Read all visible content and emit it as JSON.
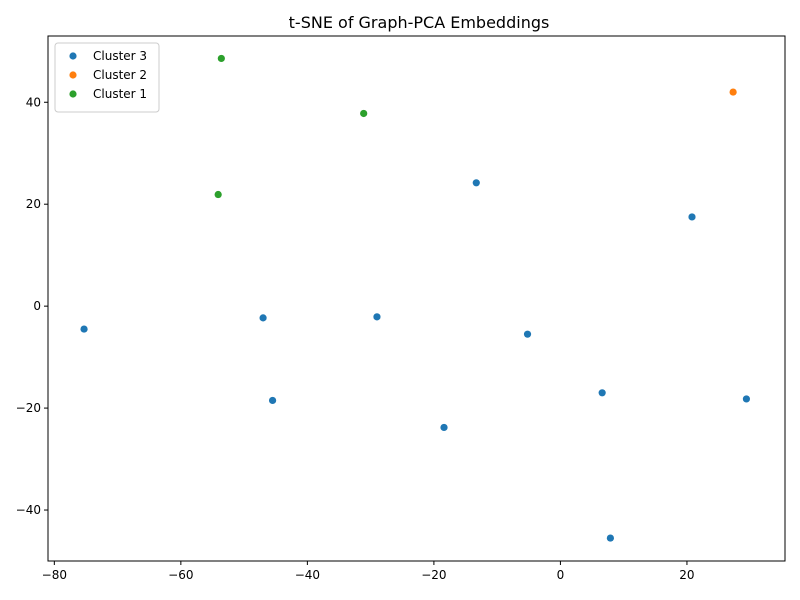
{
  "chart_data": {
    "type": "scatter",
    "title": "t-SNE of Graph-PCA Embeddings",
    "xlabel": "",
    "ylabel": "",
    "xlim": [
      -81,
      35.5
    ],
    "ylim": [
      -50,
      53
    ],
    "x_ticks": [
      -80,
      -60,
      -40,
      -20,
      0,
      20
    ],
    "y_ticks": [
      -40,
      -20,
      0,
      20,
      40
    ],
    "x_tick_labels": [
      "−80",
      "−60",
      "−40",
      "−20",
      "0",
      "20"
    ],
    "y_tick_labels": [
      "−40",
      "−20",
      "0",
      "20",
      "40"
    ],
    "grid": false,
    "legend_position": "top-left",
    "series": [
      {
        "name": "Cluster 3",
        "color": "#1f77b4",
        "points": [
          {
            "x": -75.3,
            "y": -4.5
          },
          {
            "x": -47.0,
            "y": -2.3
          },
          {
            "x": -45.5,
            "y": -18.5
          },
          {
            "x": -29.0,
            "y": -2.1
          },
          {
            "x": -18.4,
            "y": -23.8
          },
          {
            "x": -13.3,
            "y": 24.2
          },
          {
            "x": -5.2,
            "y": -5.5
          },
          {
            "x": 6.6,
            "y": -17.0
          },
          {
            "x": 7.9,
            "y": -45.5
          },
          {
            "x": 20.8,
            "y": 17.5
          },
          {
            "x": 29.4,
            "y": -18.2
          }
        ]
      },
      {
        "name": "Cluster 2",
        "color": "#ff7f0e",
        "points": [
          {
            "x": 27.3,
            "y": 42.0
          }
        ]
      },
      {
        "name": "Cluster 1",
        "color": "#2ca02c",
        "points": [
          {
            "x": -53.6,
            "y": 48.6
          },
          {
            "x": -31.1,
            "y": 37.8
          },
          {
            "x": -54.1,
            "y": 21.9
          }
        ]
      }
    ]
  }
}
